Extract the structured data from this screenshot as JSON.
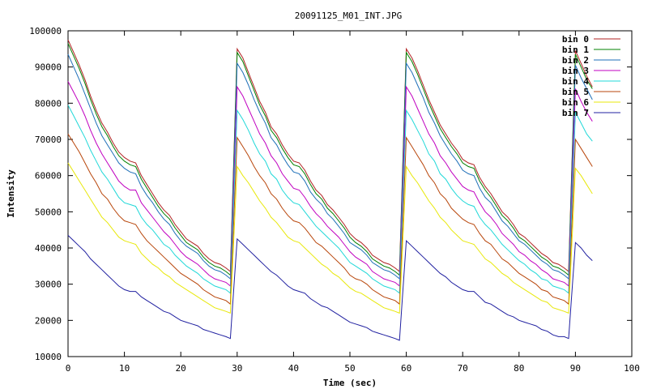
{
  "chart_data": {
    "type": "line",
    "title": "20091125_M01_INT.JPG",
    "xlabel": "Time (sec)",
    "ylabel": "Intensity",
    "xlim": [
      0,
      100
    ],
    "ylim": [
      10000,
      100000
    ],
    "xticks": [
      0,
      10,
      20,
      30,
      40,
      50,
      60,
      70,
      80,
      90,
      100
    ],
    "yticks": [
      10000,
      20000,
      30000,
      40000,
      50000,
      60000,
      70000,
      80000,
      90000,
      100000
    ],
    "grid": false,
    "legend_position": "top-right",
    "x": [
      0,
      1,
      2,
      3,
      4,
      5,
      6,
      7,
      8,
      9,
      10,
      11,
      12,
      13,
      14,
      15,
      16,
      17,
      18,
      19,
      20,
      21,
      22,
      23,
      24,
      25,
      26,
      27,
      28,
      28.8,
      30,
      31,
      32,
      33,
      34,
      35,
      36,
      37,
      38,
      39,
      40,
      41,
      42,
      43,
      44,
      45,
      46,
      47,
      48,
      49,
      50,
      51,
      52,
      53,
      54,
      55,
      56,
      57,
      58,
      58.8,
      60,
      61,
      62,
      63,
      64,
      65,
      66,
      67,
      68,
      69,
      70,
      71,
      72,
      73,
      74,
      75,
      76,
      77,
      78,
      79,
      80,
      81,
      82,
      83,
      84,
      85,
      86,
      87,
      88,
      88.8,
      90,
      91,
      92,
      93
    ],
    "series": [
      {
        "name": "bin 0",
        "color": "#b22222",
        "values": [
          97500,
          94000,
          90500,
          86500,
          82000,
          78000,
          74500,
          72000,
          69000,
          66500,
          65000,
          64000,
          63500,
          60000,
          57500,
          55000,
          52500,
          50500,
          49000,
          46500,
          44500,
          42500,
          41500,
          40500,
          38500,
          37000,
          36000,
          35500,
          34500,
          33500,
          95000,
          92500,
          88500,
          84500,
          80500,
          77500,
          73500,
          71500,
          68500,
          66000,
          64000,
          63500,
          61500,
          58500,
          56000,
          54500,
          52000,
          50500,
          48500,
          46500,
          44000,
          42500,
          41500,
          40000,
          38000,
          37000,
          36000,
          35500,
          34500,
          33500,
          95000,
          92500,
          89000,
          85000,
          81000,
          77500,
          74000,
          71500,
          69000,
          67000,
          64500,
          63500,
          63000,
          59500,
          57000,
          55000,
          52500,
          50000,
          48500,
          46500,
          44000,
          43000,
          41500,
          40000,
          38500,
          37500,
          36000,
          35500,
          34500,
          33500,
          94500,
          91000,
          87500,
          84500
        ]
      },
      {
        "name": "bin 1",
        "color": "#008000",
        "values": [
          96500,
          93000,
          89500,
          85500,
          81000,
          77000,
          73500,
          71000,
          68000,
          65500,
          64000,
          63000,
          62500,
          59000,
          56500,
          54000,
          51500,
          49500,
          48000,
          45500,
          43500,
          41500,
          40500,
          39500,
          37500,
          36000,
          35000,
          34500,
          33500,
          32500,
          94000,
          91500,
          87500,
          83500,
          79500,
          76500,
          72500,
          70500,
          67500,
          65000,
          63000,
          62500,
          60500,
          57500,
          55000,
          53500,
          51000,
          49500,
          47500,
          45500,
          43000,
          41500,
          40500,
          39000,
          37000,
          36000,
          35000,
          34500,
          33500,
          32500,
          94000,
          91500,
          88000,
          84000,
          80000,
          76500,
          73000,
          70500,
          68000,
          66000,
          63500,
          62500,
          62000,
          58500,
          56000,
          54000,
          51500,
          49000,
          47500,
          45500,
          43000,
          42000,
          40500,
          39000,
          37500,
          36500,
          35000,
          34500,
          33500,
          32500,
          93500,
          90000,
          86500,
          84000
        ]
      },
      {
        "name": "bin 2",
        "color": "#1e6fb8",
        "values": [
          93500,
          90000,
          86500,
          82500,
          78500,
          74500,
          71000,
          68500,
          66000,
          63500,
          62000,
          61000,
          60500,
          57000,
          54500,
          52500,
          50000,
          48000,
          46500,
          44000,
          42000,
          40500,
          39500,
          38500,
          36500,
          35000,
          34000,
          33500,
          32500,
          31500,
          91000,
          88500,
          85000,
          81000,
          77500,
          74500,
          70500,
          68500,
          65500,
          63000,
          61000,
          60500,
          58500,
          55500,
          53500,
          52000,
          49500,
          48000,
          46000,
          44000,
          41500,
          40500,
          39500,
          38000,
          36000,
          35000,
          34000,
          33500,
          32500,
          31500,
          91000,
          88500,
          85000,
          81500,
          77500,
          74500,
          71000,
          68500,
          66000,
          64000,
          61500,
          60500,
          60000,
          56500,
          54000,
          52500,
          50000,
          47500,
          46000,
          44000,
          42000,
          41000,
          39500,
          38000,
          36500,
          35500,
          34000,
          33500,
          32500,
          31500,
          90500,
          87000,
          84000,
          81000
        ]
      },
      {
        "name": "bin 3",
        "color": "#c000c0",
        "values": [
          86000,
          83000,
          80000,
          76500,
          72500,
          69000,
          66000,
          63500,
          61000,
          58500,
          57000,
          56000,
          56000,
          52500,
          50500,
          48500,
          46500,
          44500,
          43000,
          41000,
          39000,
          37500,
          36500,
          35500,
          34000,
          32500,
          31500,
          31000,
          30500,
          29500,
          84500,
          82000,
          78500,
          75000,
          71500,
          69000,
          65500,
          63500,
          60500,
          58500,
          56500,
          56000,
          54000,
          51500,
          49500,
          48000,
          46000,
          44500,
          43000,
          41000,
          39000,
          37500,
          36500,
          35500,
          33500,
          32500,
          31500,
          31000,
          30500,
          29500,
          84500,
          82000,
          78500,
          75000,
          71500,
          69000,
          65500,
          63500,
          61000,
          59000,
          57000,
          56000,
          55500,
          52500,
          50000,
          48500,
          46500,
          44000,
          42500,
          41000,
          39000,
          38000,
          36500,
          35500,
          34000,
          33000,
          31500,
          31000,
          30500,
          29500,
          84000,
          80500,
          77500,
          75000
        ]
      },
      {
        "name": "bin 4",
        "color": "#20d8d8",
        "values": [
          79500,
          76500,
          73500,
          70500,
          67000,
          64000,
          61000,
          59000,
          56500,
          54000,
          52500,
          52000,
          51500,
          48500,
          46500,
          45000,
          43000,
          41000,
          40000,
          38000,
          36500,
          35000,
          34000,
          33000,
          31500,
          30500,
          29500,
          29000,
          28500,
          27500,
          78000,
          75500,
          72500,
          69000,
          66000,
          64000,
          60500,
          59000,
          56000,
          54000,
          52500,
          52000,
          50000,
          48000,
          46000,
          44500,
          43000,
          41500,
          40000,
          38000,
          36000,
          35000,
          34000,
          33000,
          31500,
          30500,
          29500,
          29000,
          28500,
          27500,
          78000,
          75500,
          72500,
          69500,
          66000,
          64000,
          60500,
          59000,
          56500,
          54500,
          53000,
          52000,
          51500,
          48500,
          46500,
          45000,
          43000,
          41000,
          39500,
          38000,
          36500,
          35500,
          34000,
          33000,
          31500,
          31000,
          29500,
          29000,
          28500,
          27500,
          77500,
          74500,
          71500,
          69500
        ]
      },
      {
        "name": "bin 5",
        "color": "#b8460b",
        "values": [
          71500,
          69000,
          66500,
          63500,
          60500,
          58000,
          55000,
          53500,
          51000,
          49000,
          47500,
          47000,
          46500,
          44000,
          42000,
          40500,
          39000,
          37500,
          36000,
          34500,
          33000,
          32000,
          31000,
          30000,
          28500,
          27500,
          26500,
          26000,
          25500,
          24500,
          70500,
          68000,
          65500,
          62500,
          60000,
          58000,
          55000,
          53500,
          51000,
          49000,
          47500,
          47000,
          45500,
          43500,
          41500,
          40500,
          39000,
          37500,
          36000,
          34500,
          32500,
          31500,
          31000,
          30000,
          28500,
          27500,
          26500,
          26000,
          25500,
          24500,
          70500,
          68000,
          65500,
          63000,
          60000,
          58000,
          55000,
          53500,
          51000,
          49500,
          48000,
          47000,
          46500,
          44000,
          42000,
          41000,
          39000,
          37000,
          36000,
          34500,
          33000,
          32000,
          31000,
          30000,
          28500,
          28000,
          26500,
          26000,
          25500,
          24500,
          70000,
          67500,
          65000,
          62500
        ]
      },
      {
        "name": "bin 6",
        "color": "#e8e80a",
        "values": [
          63500,
          61000,
          58500,
          56000,
          53500,
          51000,
          48500,
          47000,
          45000,
          43000,
          42000,
          41500,
          41000,
          38500,
          37000,
          35500,
          34500,
          33000,
          32000,
          30500,
          29500,
          28500,
          27500,
          26500,
          25500,
          24500,
          23500,
          23000,
          22500,
          22000,
          62500,
          60000,
          58000,
          55500,
          53000,
          51000,
          48500,
          47000,
          45000,
          43000,
          42000,
          41500,
          40000,
          38500,
          37000,
          35500,
          34500,
          33000,
          32000,
          30500,
          29000,
          28000,
          27500,
          26500,
          25500,
          24500,
          23500,
          23000,
          22500,
          22000,
          62500,
          60000,
          58000,
          55500,
          53000,
          51000,
          48500,
          47000,
          45000,
          43500,
          42000,
          41500,
          41000,
          39000,
          37000,
          36000,
          34500,
          33000,
          32000,
          30500,
          29500,
          28500,
          27500,
          26500,
          25500,
          25000,
          23500,
          23000,
          22500,
          22000,
          62000,
          60000,
          57500,
          55000
        ]
      },
      {
        "name": "bin 7",
        "color": "#2020a0",
        "values": [
          43500,
          42000,
          40500,
          39000,
          37000,
          35500,
          34000,
          32500,
          31000,
          29500,
          28500,
          28000,
          28000,
          26500,
          25500,
          24500,
          23500,
          22500,
          22000,
          21000,
          20000,
          19500,
          19000,
          18500,
          17500,
          17000,
          16500,
          16000,
          15500,
          15000,
          42500,
          41000,
          39500,
          38000,
          36500,
          35000,
          33500,
          32500,
          31000,
          29500,
          28500,
          28000,
          27500,
          26000,
          25000,
          24000,
          23500,
          22500,
          21500,
          20500,
          19500,
          19000,
          18500,
          18000,
          17000,
          16500,
          16000,
          15500,
          15000,
          14500,
          42000,
          40500,
          39000,
          37500,
          36000,
          34500,
          33000,
          32000,
          30500,
          29500,
          28500,
          28000,
          28000,
          26500,
          25000,
          24500,
          23500,
          22500,
          21500,
          21000,
          20000,
          19500,
          19000,
          18500,
          17500,
          17000,
          16000,
          15500,
          15500,
          15000,
          41500,
          40000,
          38000,
          36500
        ]
      }
    ]
  }
}
